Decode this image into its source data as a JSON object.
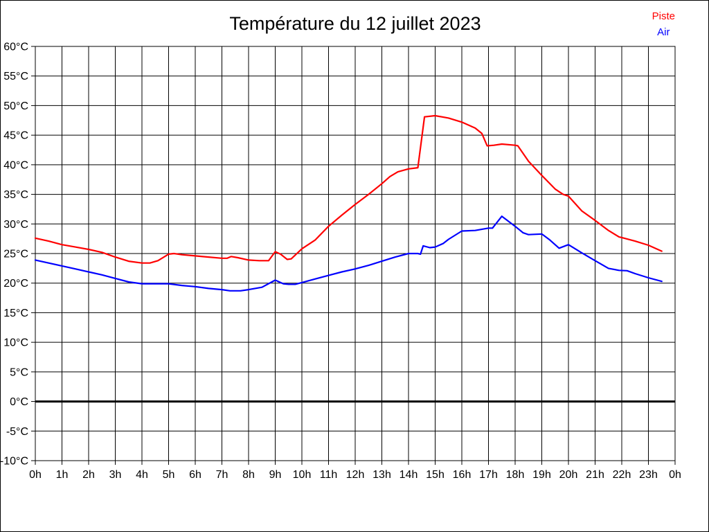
{
  "title": "Température du 12 juillet 2023",
  "legend": [
    {
      "label": "Piste",
      "color": "#ff0000"
    },
    {
      "label": "Air",
      "color": "#0000ff"
    }
  ],
  "chart_data": {
    "type": "line",
    "title": "Température du 12 juillet 2023",
    "xlabel": "",
    "ylabel": "",
    "xlim": [
      0,
      24
    ],
    "ylim": [
      -10,
      60
    ],
    "grid": true,
    "grid_color": "#000000",
    "zero_line_value": 0,
    "legend_position": "top-right",
    "x_ticks": [
      0,
      1,
      2,
      3,
      4,
      5,
      6,
      7,
      8,
      9,
      10,
      11,
      12,
      13,
      14,
      15,
      16,
      17,
      18,
      19,
      20,
      21,
      22,
      23,
      24
    ],
    "x_tick_labels": [
      "0h",
      "1h",
      "2h",
      "3h",
      "4h",
      "5h",
      "6h",
      "7h",
      "8h",
      "9h",
      "10h",
      "11h",
      "12h",
      "13h",
      "14h",
      "15h",
      "16h",
      "17h",
      "18h",
      "19h",
      "20h",
      "21h",
      "22h",
      "23h",
      "0h"
    ],
    "y_ticks": [
      60,
      55,
      50,
      45,
      40,
      35,
      30,
      25,
      20,
      15,
      10,
      5,
      0,
      -5,
      -10
    ],
    "y_tick_labels": [
      "60°C",
      "55°C",
      "50°C",
      "45°C",
      "40°C",
      "35°C",
      "30°C",
      "25°C",
      "20°C",
      "15°C",
      "10°C",
      "5°C",
      "0°C",
      "-5°C",
      "-10°C"
    ],
    "series": [
      {
        "name": "Piste",
        "color": "#ff0000",
        "points": [
          [
            0,
            27.6
          ],
          [
            0.5,
            27.1
          ],
          [
            1,
            26.5
          ],
          [
            1.5,
            26.1
          ],
          [
            2,
            25.7
          ],
          [
            2.5,
            25.2
          ],
          [
            3,
            24.4
          ],
          [
            3.5,
            23.7
          ],
          [
            4,
            23.4
          ],
          [
            4.3,
            23.4
          ],
          [
            4.6,
            23.8
          ],
          [
            5,
            24.9
          ],
          [
            5.2,
            25.0
          ],
          [
            5.5,
            24.8
          ],
          [
            6,
            24.6
          ],
          [
            6.5,
            24.4
          ],
          [
            7,
            24.2
          ],
          [
            7.2,
            24.2
          ],
          [
            7.35,
            24.5
          ],
          [
            7.6,
            24.3
          ],
          [
            8,
            23.9
          ],
          [
            8.4,
            23.8
          ],
          [
            8.75,
            23.8
          ],
          [
            9,
            25.3
          ],
          [
            9.2,
            24.9
          ],
          [
            9.45,
            24.0
          ],
          [
            9.6,
            24.1
          ],
          [
            10,
            25.8
          ],
          [
            10.5,
            27.3
          ],
          [
            11,
            29.6
          ],
          [
            11.5,
            31.5
          ],
          [
            12,
            33.3
          ],
          [
            12.5,
            35.0
          ],
          [
            13,
            36.8
          ],
          [
            13.3,
            38.0
          ],
          [
            13.6,
            38.8
          ],
          [
            14,
            39.3
          ],
          [
            14.35,
            39.5
          ],
          [
            14.6,
            48.1
          ],
          [
            15,
            48.3
          ],
          [
            15.5,
            47.9
          ],
          [
            16,
            47.2
          ],
          [
            16.5,
            46.2
          ],
          [
            16.75,
            45.3
          ],
          [
            16.95,
            43.2
          ],
          [
            17.2,
            43.3
          ],
          [
            17.5,
            43.5
          ],
          [
            18,
            43.3
          ],
          [
            18.1,
            43.2
          ],
          [
            18.5,
            40.6
          ],
          [
            19,
            38.2
          ],
          [
            19.5,
            35.9
          ],
          [
            19.8,
            35.0
          ],
          [
            20,
            34.7
          ],
          [
            20.5,
            32.2
          ],
          [
            21,
            30.6
          ],
          [
            21.5,
            28.9
          ],
          [
            21.9,
            27.8
          ],
          [
            22,
            27.7
          ],
          [
            22.5,
            27.1
          ],
          [
            23,
            26.4
          ],
          [
            23.5,
            25.4
          ]
        ]
      },
      {
        "name": "Air",
        "color": "#0000ff",
        "points": [
          [
            0,
            23.9
          ],
          [
            0.5,
            23.4
          ],
          [
            1,
            22.9
          ],
          [
            1.5,
            22.4
          ],
          [
            2,
            21.9
          ],
          [
            2.5,
            21.4
          ],
          [
            3,
            20.8
          ],
          [
            3.5,
            20.2
          ],
          [
            4,
            19.9
          ],
          [
            4.5,
            19.9
          ],
          [
            5,
            19.9
          ],
          [
            5.5,
            19.6
          ],
          [
            6,
            19.4
          ],
          [
            6.5,
            19.1
          ],
          [
            7,
            18.9
          ],
          [
            7.3,
            18.7
          ],
          [
            7.7,
            18.7
          ],
          [
            8,
            18.9
          ],
          [
            8.5,
            19.3
          ],
          [
            9,
            20.5
          ],
          [
            9.3,
            19.9
          ],
          [
            9.5,
            19.8
          ],
          [
            9.75,
            19.8
          ],
          [
            10,
            20.1
          ],
          [
            10.5,
            20.7
          ],
          [
            11,
            21.3
          ],
          [
            11.5,
            21.9
          ],
          [
            12,
            22.4
          ],
          [
            12.5,
            23.0
          ],
          [
            13,
            23.7
          ],
          [
            13.5,
            24.4
          ],
          [
            14,
            25.0
          ],
          [
            14.35,
            25.0
          ],
          [
            14.45,
            24.9
          ],
          [
            14.55,
            26.3
          ],
          [
            14.8,
            26.0
          ],
          [
            15,
            26.1
          ],
          [
            15.3,
            26.7
          ],
          [
            15.5,
            27.4
          ],
          [
            16,
            28.8
          ],
          [
            16.5,
            28.9
          ],
          [
            17,
            29.3
          ],
          [
            17.15,
            29.3
          ],
          [
            17.5,
            31.3
          ],
          [
            18,
            29.6
          ],
          [
            18.3,
            28.5
          ],
          [
            18.5,
            28.2
          ],
          [
            19,
            28.3
          ],
          [
            19.3,
            27.3
          ],
          [
            19.65,
            25.9
          ],
          [
            20,
            26.5
          ],
          [
            20.5,
            25.1
          ],
          [
            21,
            23.8
          ],
          [
            21.5,
            22.5
          ],
          [
            21.9,
            22.15
          ],
          [
            22.2,
            22.1
          ],
          [
            22.5,
            21.6
          ],
          [
            23,
            20.9
          ],
          [
            23.5,
            20.3
          ]
        ]
      }
    ]
  }
}
